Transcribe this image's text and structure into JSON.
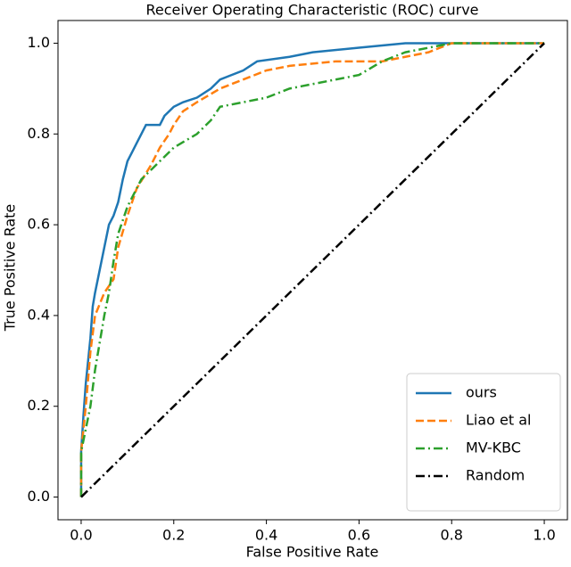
{
  "chart_data": {
    "type": "line",
    "title": "Receiver Operating Characteristic (ROC) curve",
    "xlabel": "False Positive Rate",
    "ylabel": "True Positive Rate",
    "xlim": [
      -0.05,
      1.05
    ],
    "ylim": [
      -0.05,
      1.05
    ],
    "xticks": [
      {
        "value": 0,
        "label": "0.0"
      },
      0.2,
      0.4,
      0.6,
      0.8,
      {
        "value": 1,
        "label": "1.0"
      }
    ],
    "yticks": [
      {
        "value": 0,
        "label": "0.0"
      },
      0.2,
      0.4,
      0.6,
      0.8,
      {
        "value": 1,
        "label": "1.0"
      }
    ],
    "grid": false,
    "legend": "lower right",
    "series": [
      {
        "name": "ours",
        "color": "#1f77b4",
        "dash": "solid",
        "x": [
          0,
          0,
          0.005,
          0.01,
          0.015,
          0.02,
          0.025,
          0.03,
          0.04,
          0.05,
          0.06,
          0.07,
          0.08,
          0.09,
          0.1,
          0.11,
          0.12,
          0.13,
          0.14,
          0.17,
          0.18,
          0.2,
          0.22,
          0.25,
          0.28,
          0.3,
          0.35,
          0.38,
          0.45,
          0.5,
          0.6,
          0.7,
          1
        ],
        "values": [
          0,
          0.1,
          0.18,
          0.25,
          0.3,
          0.35,
          0.42,
          0.45,
          0.5,
          0.55,
          0.6,
          0.62,
          0.65,
          0.7,
          0.74,
          0.76,
          0.78,
          0.8,
          0.82,
          0.82,
          0.84,
          0.86,
          0.87,
          0.88,
          0.9,
          0.92,
          0.94,
          0.96,
          0.97,
          0.98,
          0.99,
          1,
          1
        ]
      },
      {
        "name": "Liao et al",
        "color": "#ff7f0e",
        "dash": "dashed",
        "x": [
          0,
          0,
          0.01,
          0.02,
          0.03,
          0.05,
          0.07,
          0.08,
          0.1,
          0.12,
          0.15,
          0.17,
          0.19,
          0.2,
          0.22,
          0.25,
          0.3,
          0.35,
          0.4,
          0.45,
          0.55,
          0.65,
          0.75,
          0.8,
          1
        ],
        "values": [
          0,
          0.1,
          0.2,
          0.32,
          0.4,
          0.45,
          0.48,
          0.55,
          0.62,
          0.68,
          0.73,
          0.77,
          0.8,
          0.82,
          0.85,
          0.87,
          0.9,
          0.92,
          0.94,
          0.95,
          0.96,
          0.96,
          0.98,
          1,
          1
        ]
      },
      {
        "name": "MV-KBC",
        "color": "#2ca02c",
        "dash": "dashdot",
        "x": [
          0,
          0,
          0.01,
          0.02,
          0.03,
          0.05,
          0.06,
          0.07,
          0.08,
          0.1,
          0.12,
          0.13,
          0.15,
          0.2,
          0.25,
          0.28,
          0.3,
          0.35,
          0.4,
          0.45,
          0.5,
          0.6,
          0.65,
          0.7,
          0.8,
          1
        ],
        "values": [
          0,
          0.1,
          0.15,
          0.2,
          0.28,
          0.4,
          0.45,
          0.52,
          0.58,
          0.64,
          0.68,
          0.7,
          0.72,
          0.77,
          0.8,
          0.83,
          0.86,
          0.87,
          0.88,
          0.9,
          0.91,
          0.93,
          0.96,
          0.98,
          1,
          1
        ]
      },
      {
        "name": "Random",
        "color": "#000000",
        "dash": "dashdot",
        "x": [
          0,
          1
        ],
        "values": [
          0,
          1
        ]
      }
    ]
  }
}
